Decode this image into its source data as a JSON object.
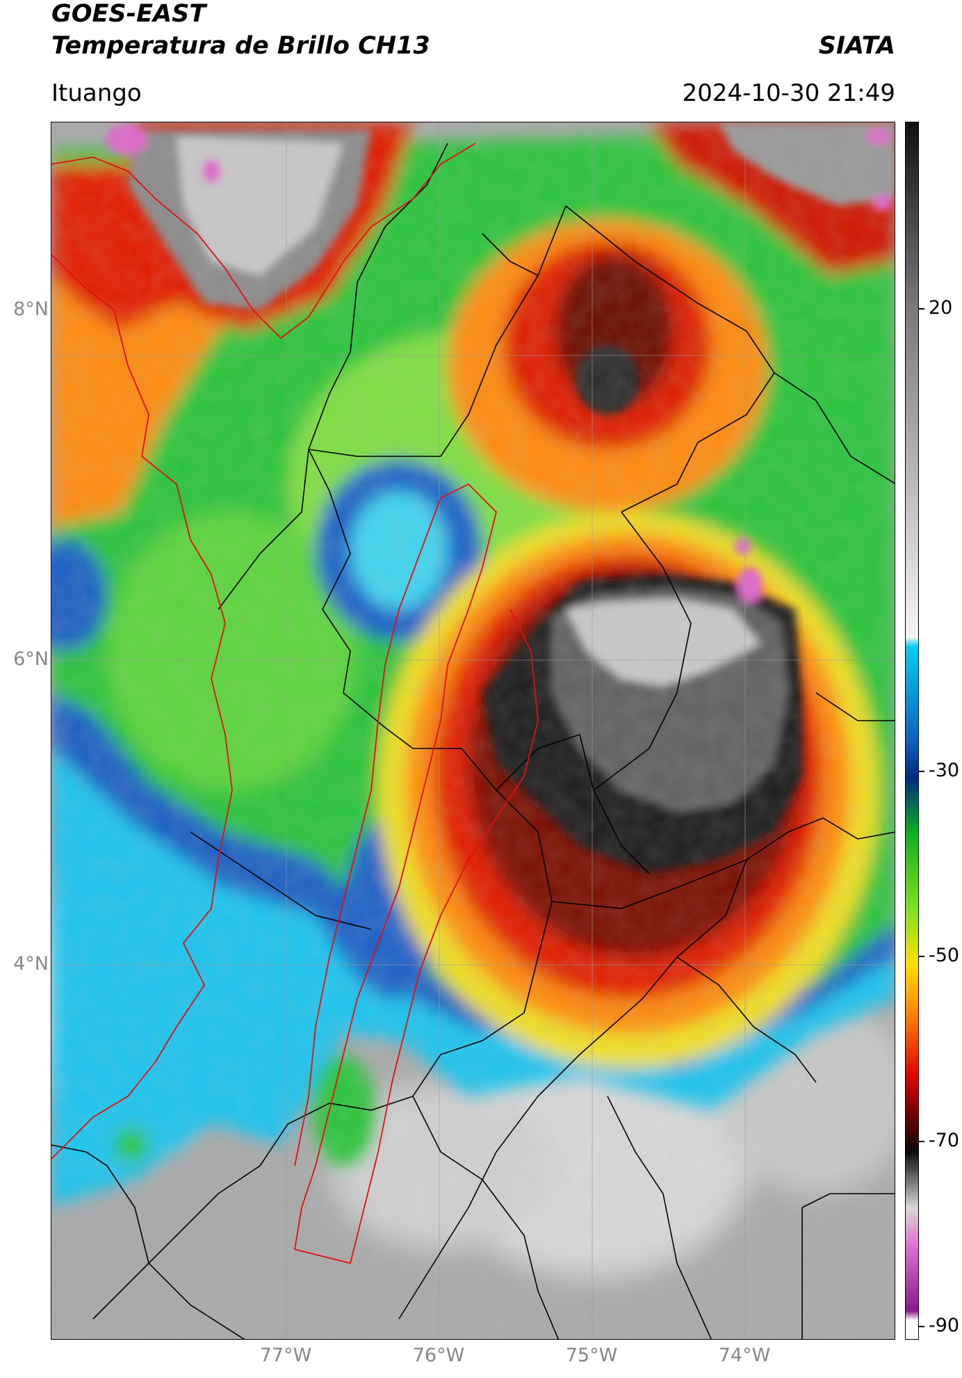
{
  "header": {
    "title_line1": "GOES-EAST",
    "title_line2": "Temperatura de Brillo CH13",
    "agency": "SIATA",
    "location": "Ituango",
    "timestamp": "2024-10-30 21:49"
  },
  "map": {
    "lat_labels": [
      "8°N",
      "6°N",
      "4°N"
    ],
    "lon_labels": [
      "77°W",
      "76°W",
      "75°W",
      "74°W"
    ],
    "colors": {
      "clear_sky": "#bdbdbd",
      "warm_cloud": "#00b4e6",
      "mid_cloud": "#3cd23c",
      "cold_cloud": "#ff7800",
      "very_cold": "#b40000",
      "overshoot": "#2a2a2a",
      "highest_tops": "#e066cc",
      "department_border": "#e01010",
      "admin_border": "#000000"
    }
  },
  "colorbar": {
    "ticks": [
      "20",
      "-30",
      "-50",
      "-70",
      "-90"
    ],
    "stops": [
      {
        "value": 40,
        "color": "#111111"
      },
      {
        "value": 20,
        "color": "#7a7a7a"
      },
      {
        "value": -15,
        "color": "#f4f4f4"
      },
      {
        "value": -16,
        "color": "#00d0f0"
      },
      {
        "value": -26,
        "color": "#1060c0"
      },
      {
        "value": -30,
        "color": "#002a80"
      },
      {
        "value": -36,
        "color": "#10b020"
      },
      {
        "value": -44,
        "color": "#80e020"
      },
      {
        "value": -50,
        "color": "#ffe000"
      },
      {
        "value": -55,
        "color": "#ff8800"
      },
      {
        "value": -62,
        "color": "#e00000"
      },
      {
        "value": -66,
        "color": "#700000"
      },
      {
        "value": -70,
        "color": "#0a0a0a"
      },
      {
        "value": -76,
        "color": "#d8d8d8"
      },
      {
        "value": -80,
        "color": "#e070d0"
      },
      {
        "value": -87,
        "color": "#8a1a8a"
      },
      {
        "value": -88,
        "color": "#ffffff"
      },
      {
        "value": -90,
        "color": "#ffffff"
      }
    ]
  }
}
